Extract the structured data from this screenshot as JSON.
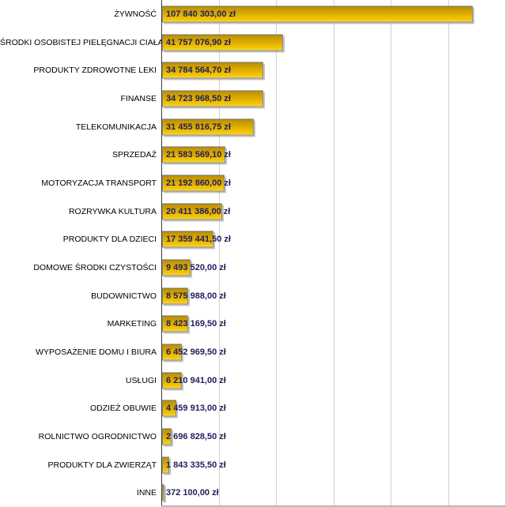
{
  "chart_data": {
    "type": "bar",
    "orientation": "horizontal",
    "title": "",
    "xlabel": "",
    "ylabel": "",
    "legend": "none",
    "grid": "vertical",
    "currency_suffix": "zł",
    "xlim": [
      0,
      120000000
    ],
    "gridline_interval": 20000000,
    "categories": [
      "ŻYWNOŚĆ",
      "ŚRODKI OSOBISTEJ PIELĘGNACJI CIAŁA",
      "PRODUKTY ZDROWOTNE LEKI",
      "FINANSE",
      "TELEKOMUNIKACJA",
      "SPRZEDAŻ",
      "MOTORYZACJA TRANSPORT",
      "ROZRYWKA KULTURA",
      "PRODUKTY DLA DZIECI",
      "DOMOWE ŚRODKI CZYSTOŚCI",
      "BUDOWNICTWO",
      "MARKETING",
      "WYPOSAŻENIE DOMU I BIURA",
      "USŁUGI",
      "ODZIEŻ OBUWIE",
      "ROLNICTWO OGRODNICTWO",
      "PRODUKTY DLA ZWIERZĄT",
      "INNE"
    ],
    "values": [
      107840303.0,
      41757076.9,
      34784564.7,
      34723968.5,
      31455816.75,
      21583569.1,
      21192860.0,
      20411386.0,
      17359441.5,
      9493520.0,
      8575988.0,
      8423169.5,
      6452969.5,
      6210941.0,
      4459913.0,
      2696828.5,
      1843335.5,
      372100.0
    ],
    "value_labels": [
      "107 840 303,00 zł",
      "41 757 076,90 zł",
      "34 784 564,70 zł",
      "34 723 968,50 zł",
      "31 455 816,75 zł",
      "21 583 569,10 zł",
      "21 192 860,00 zł",
      "20 411 386,00 zł",
      "17 359 441,50 zł",
      "9 493 520,00 zł",
      "8 575 988,00 zł",
      "8 423 169,50 zł",
      "6 452 969,50 zł",
      "6 210 941,00 zł",
      "4 459 913,00 zł",
      "2 696 828,50 zł",
      "1 843 335,50 zł",
      "372 100,00 zł"
    ]
  },
  "style": {
    "bar_gradient_top": "#bd9000",
    "bar_gradient_mid": "#eebd00",
    "bar_gradient_bottom": "#f6d84e",
    "bar_border": "#8c8c8c",
    "value_text_color": "#1e1e5f",
    "category_text_color": "#000000",
    "gridline_color": "#d2d2d2",
    "axis_line_color": "#3d3d3d",
    "background": "#ffffff"
  }
}
